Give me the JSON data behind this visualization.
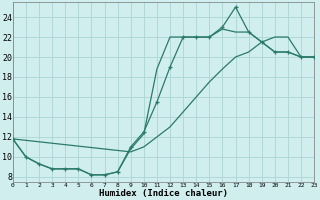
{
  "xlabel": "Humidex (Indice chaleur)",
  "bg_color": "#d0eeee",
  "grid_color": "#b0d8d8",
  "line_color": "#2a7a6a",
  "xlim": [
    0,
    23
  ],
  "ylim": [
    7.5,
    25.5
  ],
  "xtick_vals": [
    0,
    1,
    2,
    3,
    4,
    5,
    6,
    7,
    8,
    9,
    10,
    11,
    12,
    13,
    14,
    15,
    16,
    17,
    18,
    19,
    20,
    21,
    22,
    23
  ],
  "ytick_vals": [
    8,
    10,
    12,
    14,
    16,
    18,
    20,
    22,
    24
  ],
  "series1_x": [
    0,
    1,
    2,
    3,
    4,
    5,
    6,
    7,
    8,
    9,
    10,
    11,
    12,
    13,
    14,
    15,
    16,
    17,
    18,
    19,
    20,
    21,
    22,
    23
  ],
  "series1_y": [
    11.8,
    10.0,
    9.3,
    8.8,
    8.8,
    8.8,
    8.2,
    8.2,
    8.5,
    11.0,
    12.5,
    15.5,
    19.0,
    22.0,
    22.0,
    22.0,
    23.0,
    25.0,
    22.5,
    21.5,
    20.5,
    20.5,
    20.0,
    20.0
  ],
  "series2_x": [
    0,
    1,
    2,
    3,
    4,
    5,
    6,
    7,
    8,
    9,
    10,
    11,
    12,
    13,
    14,
    15,
    16,
    17,
    18,
    19,
    20,
    21,
    22,
    23
  ],
  "series2_y": [
    11.8,
    10.0,
    9.3,
    8.8,
    8.8,
    8.8,
    8.2,
    8.2,
    8.5,
    10.8,
    12.3,
    18.8,
    22.0,
    22.0,
    22.0,
    22.0,
    22.8,
    22.5,
    22.5,
    21.5,
    20.5,
    20.5,
    20.0,
    20.0
  ],
  "series3_x": [
    0,
    9,
    10,
    11,
    12,
    13,
    14,
    15,
    16,
    17,
    18,
    19,
    20,
    21,
    22,
    23
  ],
  "series3_y": [
    11.8,
    10.5,
    11.0,
    12.0,
    13.0,
    14.5,
    16.0,
    17.5,
    18.8,
    20.0,
    20.5,
    21.5,
    22.0,
    22.0,
    20.0,
    20.0
  ],
  "xlabel_fontsize": 6.5,
  "xtick_fontsize": 4.5,
  "ytick_fontsize": 6.0
}
